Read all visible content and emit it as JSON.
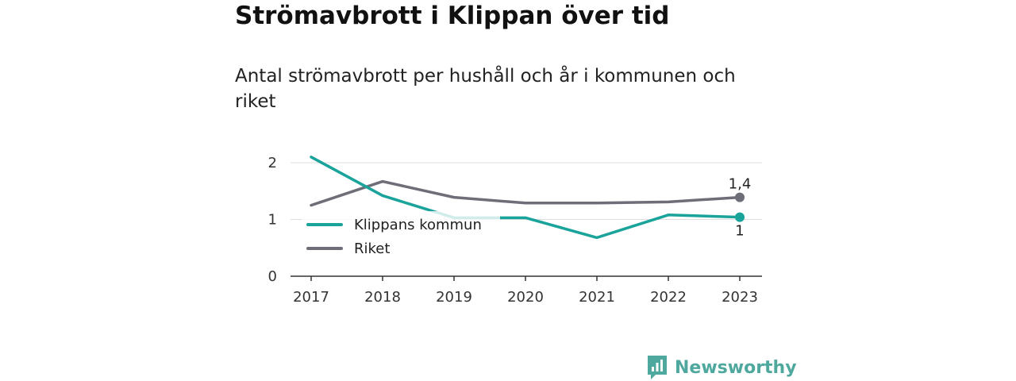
{
  "title": "Strömavbrott i Klippan över tid",
  "subtitle": "Antal strömavbrott per hushåll och år i kommunen och riket",
  "brand": {
    "name": "Newsworthy",
    "color": "#4fa89e",
    "icon": "newsworthy-logo-icon"
  },
  "chart_data": {
    "type": "line",
    "title": "Strömavbrott i Klippan över tid",
    "subtitle": "Antal strömavbrott per hushåll och år i kommunen och riket",
    "x": [
      "2017",
      "2018",
      "2019",
      "2020",
      "2021",
      "2022",
      "2023"
    ],
    "ylim": [
      0,
      2.2
    ],
    "yticks": [
      "0",
      "1",
      "2"
    ],
    "grid": "horizontal",
    "legend": "left",
    "series": [
      {
        "name": "Klippans kommun",
        "color": "#1aa39a",
        "values": [
          2.1,
          1.42,
          1.03,
          1.03,
          0.68,
          1.08,
          1.04
        ],
        "end_label": "1"
      },
      {
        "name": "Riket",
        "color": "#6e6e78",
        "values": [
          1.25,
          1.67,
          1.39,
          1.29,
          1.29,
          1.31,
          1.39
        ],
        "end_label": "1,4"
      }
    ]
  }
}
